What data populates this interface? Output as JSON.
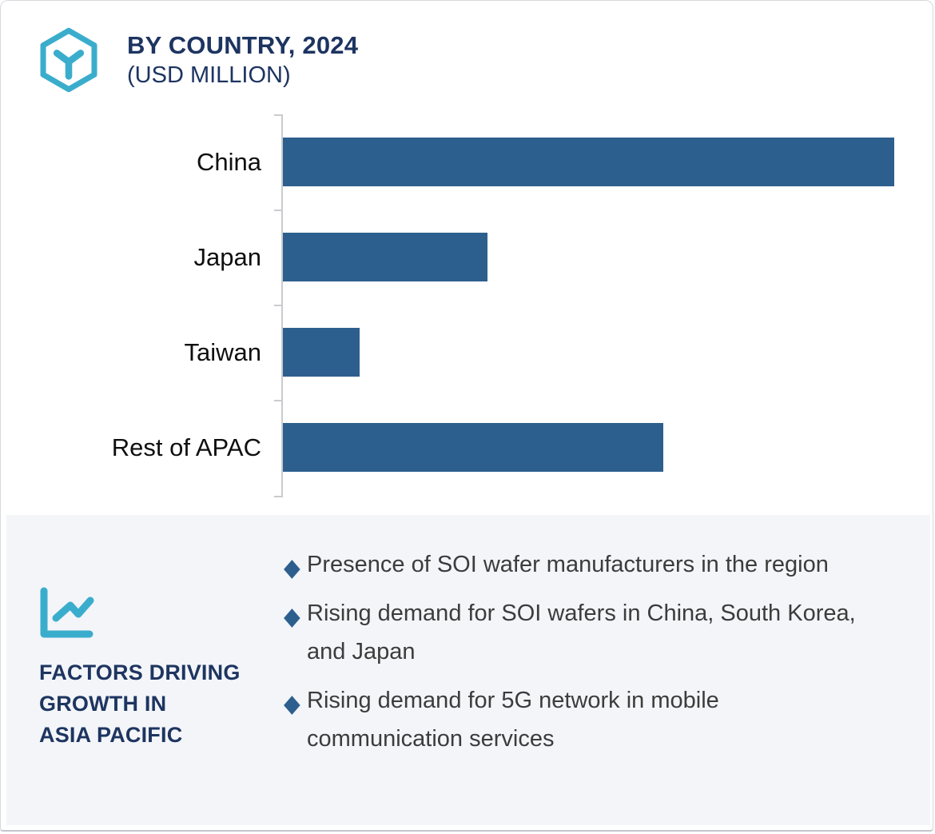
{
  "header": {
    "title_line1": "BY COUNTRY, 2024",
    "title_line2": "(USD MILLION)",
    "logo_icon": "hexagon-y-wafer-icon"
  },
  "chart_data": {
    "type": "bar",
    "orientation": "horizontal",
    "title": "BY COUNTRY, 2024",
    "subtitle": "(USD MILLION)",
    "categories": [
      "China",
      "Japan",
      "Taiwan",
      "Rest of APAC"
    ],
    "values": [
      100,
      33.5,
      12.5,
      62.2
    ],
    "values_note": "bars carry no numeric labels; values are relative bar lengths with China = 100",
    "xlabel": "",
    "ylabel": "",
    "grid": false,
    "legend": false,
    "value_labels": false,
    "bar_color": "#2d5f8e",
    "axis_color": "#c9cbce"
  },
  "factors_panel": {
    "icon": "line-chart-icon",
    "heading_lines": [
      "FACTORS DRIVING",
      "GROWTH IN",
      "ASIA PACIFIC"
    ],
    "bullet_icon": "diamond-bullet",
    "bullet_glyph": "◆",
    "bullets": [
      "Presence of SOI wafer manufacturers in the region",
      "Rising demand for SOI wafers in China, South Korea, and Japan",
      "Rising demand for 5G network in mobile communication services"
    ]
  },
  "colors": {
    "accent_teal": "#3badcc",
    "navy": "#1d3461",
    "bar_blue": "#2d5f8e",
    "panel_background": "#f3f5f9",
    "body_text": "#3c3c3c",
    "axis_gray": "#c9cbce"
  }
}
